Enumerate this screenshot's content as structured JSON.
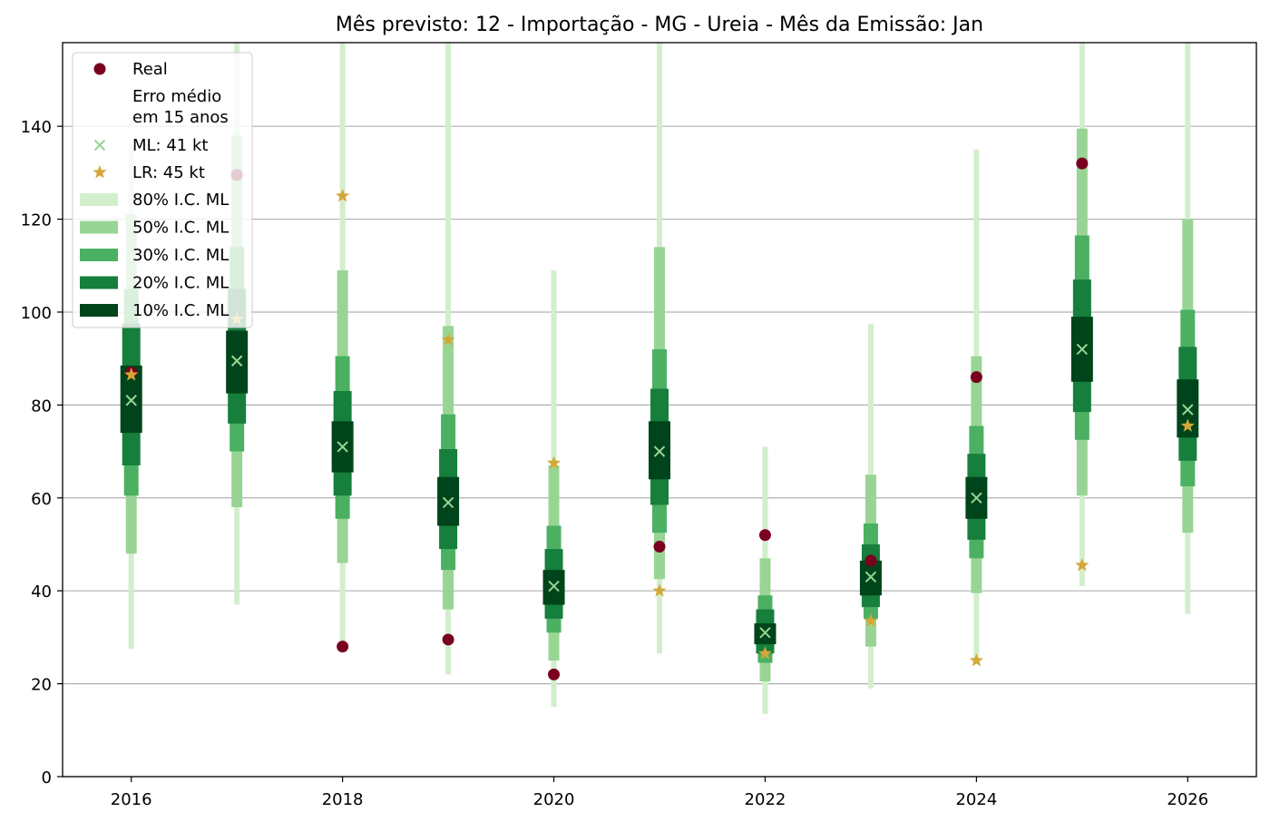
{
  "chart_data": {
    "type": "interval-range",
    "title": "Mês previsto: 12 - Importação - MG - Ureia - Mês da Emissão: Jan",
    "xlabel": "",
    "ylabel": "",
    "xlim": [
      2015.35,
      2026.65
    ],
    "ylim": [
      0,
      158
    ],
    "xticks": [
      "2016",
      "2018",
      "2020",
      "2022",
      "2024",
      "2026"
    ],
    "yticks": [
      "0",
      "20",
      "40",
      "60",
      "80",
      "100",
      "120",
      "140"
    ],
    "grid": "horizontal",
    "legend_position": "upper left",
    "legend": {
      "real": "Real",
      "erro_title": "Erro médio\nem 15 anos",
      "ml": "ML: 41 kt",
      "lr": "LR: 45 kt",
      "ci80": "80% I.C. ML",
      "ci50": "50% I.C. ML",
      "ci30": "30% I.C. ML",
      "ci20": "20% I.C. ML",
      "ci10": "10% I.C. ML"
    },
    "colors": {
      "real": "#7a0020",
      "ml": "#98d594",
      "lr": "#d4a838",
      "ci80": "#d3eecd",
      "ci50": "#98d594",
      "ci30": "#4bb062",
      "ci20": "#157f3b",
      "ci10": "#00441b",
      "grid": "#b0b0b0"
    },
    "years": [
      2016,
      2017,
      2018,
      2019,
      2020,
      2021,
      2022,
      2023,
      2024,
      2025,
      2026
    ],
    "ml": [
      81,
      89.5,
      71,
      59,
      41,
      70,
      31,
      43,
      60,
      92,
      79
    ],
    "lr": [
      86.5,
      98.5,
      125,
      94,
      67.5,
      40,
      26.5,
      33.5,
      25,
      45.5,
      75.5
    ],
    "real": [
      87,
      129.5,
      28,
      29.5,
      22,
      49.5,
      52,
      46.5,
      86,
      132,
      null
    ],
    "ci80": [
      [
        27.5,
        136
      ],
      [
        37,
        158
      ],
      [
        29,
        158
      ],
      [
        22,
        158
      ],
      [
        15,
        109
      ],
      [
        26.5,
        158
      ],
      [
        13.5,
        71
      ],
      [
        19,
        97.5
      ],
      [
        25,
        135
      ],
      [
        41,
        158
      ],
      [
        35,
        158
      ]
    ],
    "ci50": [
      [
        48,
        121
      ],
      [
        58,
        138
      ],
      [
        46,
        109
      ],
      [
        36,
        97
      ],
      [
        25,
        67
      ],
      [
        42.5,
        114
      ],
      [
        20.5,
        47
      ],
      [
        28,
        65
      ],
      [
        39.5,
        90.5
      ],
      [
        60.5,
        139.5
      ],
      [
        52.5,
        120
      ]
    ],
    "ci30": [
      [
        60.5,
        105
      ],
      [
        70,
        114
      ],
      [
        55.5,
        90.5
      ],
      [
        44.5,
        78
      ],
      [
        31,
        54
      ],
      [
        52.5,
        92
      ],
      [
        24.5,
        39
      ],
      [
        34,
        54.5
      ],
      [
        47,
        75.5
      ],
      [
        72.5,
        116.5
      ],
      [
        62.5,
        100.5
      ]
    ],
    "ci20": [
      [
        67,
        97.5
      ],
      [
        76,
        105
      ],
      [
        60.5,
        83
      ],
      [
        49,
        70.5
      ],
      [
        34,
        49
      ],
      [
        58.5,
        83.5
      ],
      [
        26.5,
        36
      ],
      [
        36.5,
        50
      ],
      [
        51,
        69.5
      ],
      [
        78.5,
        107
      ],
      [
        68,
        92.5
      ]
    ],
    "ci10": [
      [
        74,
        88.5
      ],
      [
        82.5,
        96
      ],
      [
        65.5,
        76.5
      ],
      [
        54,
        64.5
      ],
      [
        37,
        44.5
      ],
      [
        64,
        76.5
      ],
      [
        28.5,
        33
      ],
      [
        39,
        46.5
      ],
      [
        55.5,
        64.5
      ],
      [
        85,
        99
      ],
      [
        73,
        85.5
      ]
    ]
  }
}
